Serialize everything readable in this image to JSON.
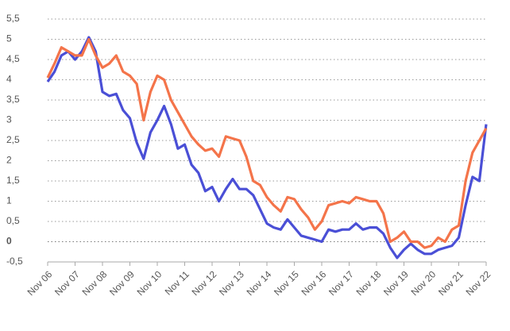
{
  "chart_data": {
    "type": "line",
    "categories": [
      "Nov 06",
      null,
      null,
      null,
      "Nov 07",
      null,
      null,
      null,
      "Nov 08",
      null,
      null,
      null,
      "Nov 09",
      null,
      null,
      null,
      "Nov 10",
      null,
      null,
      null,
      "Nov 11",
      null,
      null,
      null,
      "Nov 12",
      null,
      null,
      null,
      "Nov 13",
      null,
      null,
      null,
      "Nov 14",
      null,
      null,
      null,
      "Nov 15",
      null,
      null,
      null,
      "Nov 16",
      null,
      null,
      null,
      "Nov 17",
      null,
      null,
      null,
      "Nov 18",
      null,
      null,
      null,
      "Nov 19",
      null,
      null,
      null,
      "Nov 20",
      null,
      null,
      null,
      "Nov 21",
      null,
      null,
      null,
      "Nov 22"
    ],
    "series": [
      {
        "color": "#4a4fd6",
        "values": [
          3.95,
          4.2,
          4.6,
          4.7,
          4.5,
          4.7,
          5.05,
          4.7,
          3.7,
          3.6,
          3.65,
          3.25,
          3.05,
          2.45,
          2.05,
          2.7,
          3.0,
          3.35,
          2.9,
          2.3,
          2.4,
          1.9,
          1.7,
          1.25,
          1.35,
          1.0,
          1.3,
          1.55,
          1.3,
          1.3,
          1.15,
          0.8,
          0.45,
          0.35,
          0.3,
          0.55,
          0.35,
          0.15,
          0.1,
          0.05,
          0.0,
          0.3,
          0.25,
          0.3,
          0.3,
          0.45,
          0.3,
          0.35,
          0.35,
          0.2,
          -0.15,
          -0.4,
          -0.2,
          -0.05,
          -0.2,
          -0.3,
          -0.3,
          -0.2,
          -0.15,
          -0.1,
          0.1,
          0.9,
          1.6,
          1.5,
          2.9
        ]
      },
      {
        "color": "#f4744a",
        "values": [
          4.05,
          4.4,
          4.8,
          4.7,
          4.6,
          4.6,
          5.0,
          4.6,
          4.3,
          4.4,
          4.6,
          4.2,
          4.1,
          3.9,
          3.0,
          3.7,
          4.1,
          4.0,
          3.5,
          3.2,
          2.9,
          2.6,
          2.4,
          2.25,
          2.3,
          2.1,
          2.6,
          2.55,
          2.5,
          2.1,
          1.5,
          1.4,
          1.1,
          0.9,
          0.75,
          1.1,
          1.05,
          0.8,
          0.6,
          0.3,
          0.5,
          0.9,
          0.95,
          1.0,
          0.95,
          1.1,
          1.05,
          1.0,
          1.0,
          0.7,
          0.0,
          0.1,
          0.25,
          0.0,
          0.0,
          -0.15,
          -0.1,
          0.1,
          0.0,
          0.3,
          0.4,
          1.5,
          2.2,
          2.5,
          2.8
        ]
      }
    ],
    "ylim": [
      -0.5,
      5.5
    ],
    "yticks": [
      {
        "value": -0.5,
        "label": "-0,5"
      },
      0,
      {
        "value": 0.5,
        "label": "0,5"
      },
      1,
      {
        "value": 1.5,
        "label": "1,5"
      },
      2,
      {
        "value": 2.5,
        "label": "2,5"
      },
      3,
      {
        "value": 3.5,
        "label": "3,5"
      },
      4,
      {
        "value": 4.5,
        "label": "4,5"
      },
      5,
      {
        "value": 5.5,
        "label": "5,5"
      }
    ],
    "grid": true
  }
}
